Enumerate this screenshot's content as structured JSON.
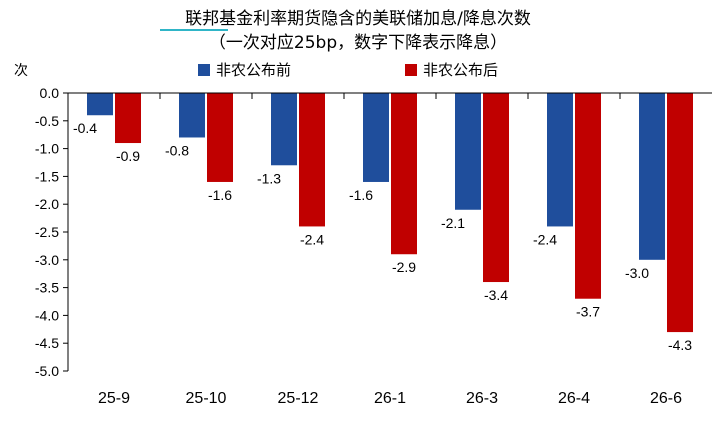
{
  "chart_data": {
    "type": "bar",
    "title": "联邦基金利率期货隐含的美联储加息/降息次数",
    "subtitle": "（一次对应25bp，数字下降表示降息）",
    "ylabel": "次",
    "xlabel": "",
    "categories": [
      "25-9",
      "25-10",
      "25-12",
      "26-1",
      "26-3",
      "26-4",
      "26-6"
    ],
    "series": [
      {
        "name": "非农公布前",
        "color": "#1F4E9C",
        "values": [
          -0.4,
          -0.8,
          -1.3,
          -1.6,
          -2.1,
          -2.4,
          -3.0
        ]
      },
      {
        "name": "非农公布后",
        "color": "#C00000",
        "values": [
          -0.9,
          -1.6,
          -2.4,
          -2.9,
          -3.4,
          -3.7,
          -4.3
        ]
      }
    ],
    "data_labels": [
      [
        "-0.4",
        "-0.8",
        "-1.3",
        "-1.6",
        "-2.1",
        "-2.4",
        "-3.0"
      ],
      [
        "-0.9",
        "-1.6",
        "-2.4",
        "-2.9",
        "-3.4",
        "-3.7",
        "-4.3"
      ]
    ],
    "ylim": [
      -5.0,
      0.0
    ],
    "yticks": [
      "0.0",
      "-0.5",
      "-1.0",
      "-1.5",
      "-2.0",
      "-2.5",
      "-3.0",
      "-3.5",
      "-4.0",
      "-4.5",
      "-5.0"
    ],
    "ytick_values": [
      0.0,
      -0.5,
      -1.0,
      -1.5,
      -2.0,
      -2.5,
      -3.0,
      -3.5,
      -4.0,
      -4.5,
      -5.0
    ],
    "grid": false,
    "legend_position": "top",
    "title_underline_color": "#2FB5C7"
  }
}
